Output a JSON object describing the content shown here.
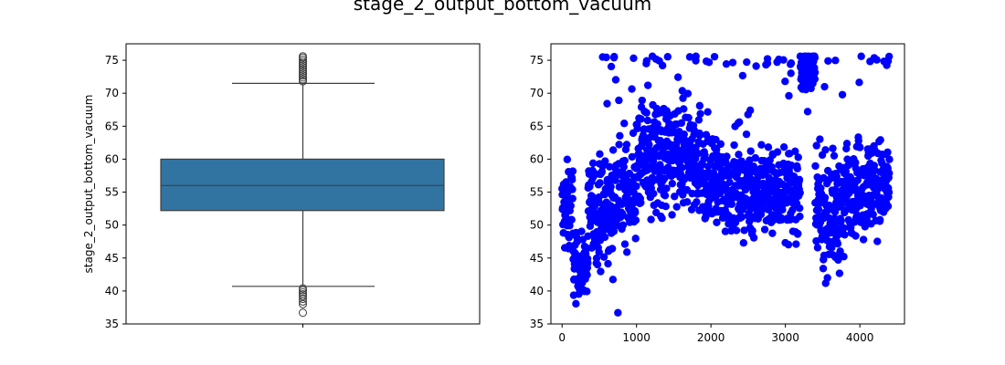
{
  "title": "stage_2_output_bottom_vacuum",
  "chart_data": [
    {
      "type": "box",
      "title": "",
      "xlabel": "",
      "ylabel": "stage_2_output_bottom_vacuum",
      "ylim": [
        35,
        77.5
      ],
      "yticks": [
        35,
        40,
        45,
        50,
        55,
        60,
        65,
        70,
        75
      ],
      "box": {
        "q1": 52.2,
        "median": 56.0,
        "q3": 60.0,
        "whisker_low": 40.7,
        "whisker_high": 71.5,
        "color": "#3274a1"
      },
      "outliers_high": [
        71.8,
        72.1,
        72.4,
        72.7,
        73.0,
        73.3,
        73.6,
        73.9,
        74.2,
        74.5,
        74.8,
        75.1,
        75.4,
        75.6
      ],
      "outliers_low": [
        40.4,
        40.1,
        39.8,
        39.5,
        39.2,
        38.8,
        38.4,
        38.0,
        36.7
      ]
    },
    {
      "type": "scatter",
      "title": "",
      "xlabel": "",
      "ylabel": "",
      "xlim": [
        -150,
        4600
      ],
      "ylim": [
        35,
        77.5
      ],
      "xticks": [
        0,
        1000,
        2000,
        3000,
        4000
      ],
      "yticks": [
        35,
        40,
        45,
        50,
        55,
        60,
        65,
        70,
        75
      ],
      "color": "#0000ff",
      "y_max": 75.6,
      "y_min": 36.7,
      "x_max": 4400,
      "regimes": [
        {
          "x_range": [
            0,
            150
          ],
          "center": 52,
          "spread": 5
        },
        {
          "x_range": [
            150,
            350
          ],
          "center": 44,
          "spread": 3
        },
        {
          "x_range": [
            350,
            700
          ],
          "center": 52,
          "spread": 5
        },
        {
          "x_range": [
            700,
            1000
          ],
          "center": 55,
          "spread": 5
        },
        {
          "x_range": [
            1000,
            1900
          ],
          "center": 60,
          "spread": 6
        },
        {
          "x_range": [
            1900,
            2300
          ],
          "center": 56,
          "spread": 5
        },
        {
          "x_range": [
            2300,
            3200
          ],
          "center": 55,
          "spread": 4.5
        },
        {
          "x_range": [
            3200,
            3400
          ],
          "center": 73,
          "spread": 2
        },
        {
          "x_range": [
            3400,
            3800
          ],
          "center": 52,
          "spread": 6
        },
        {
          "x_range": [
            3800,
            4400
          ],
          "center": 56,
          "spread": 5
        }
      ]
    }
  ]
}
